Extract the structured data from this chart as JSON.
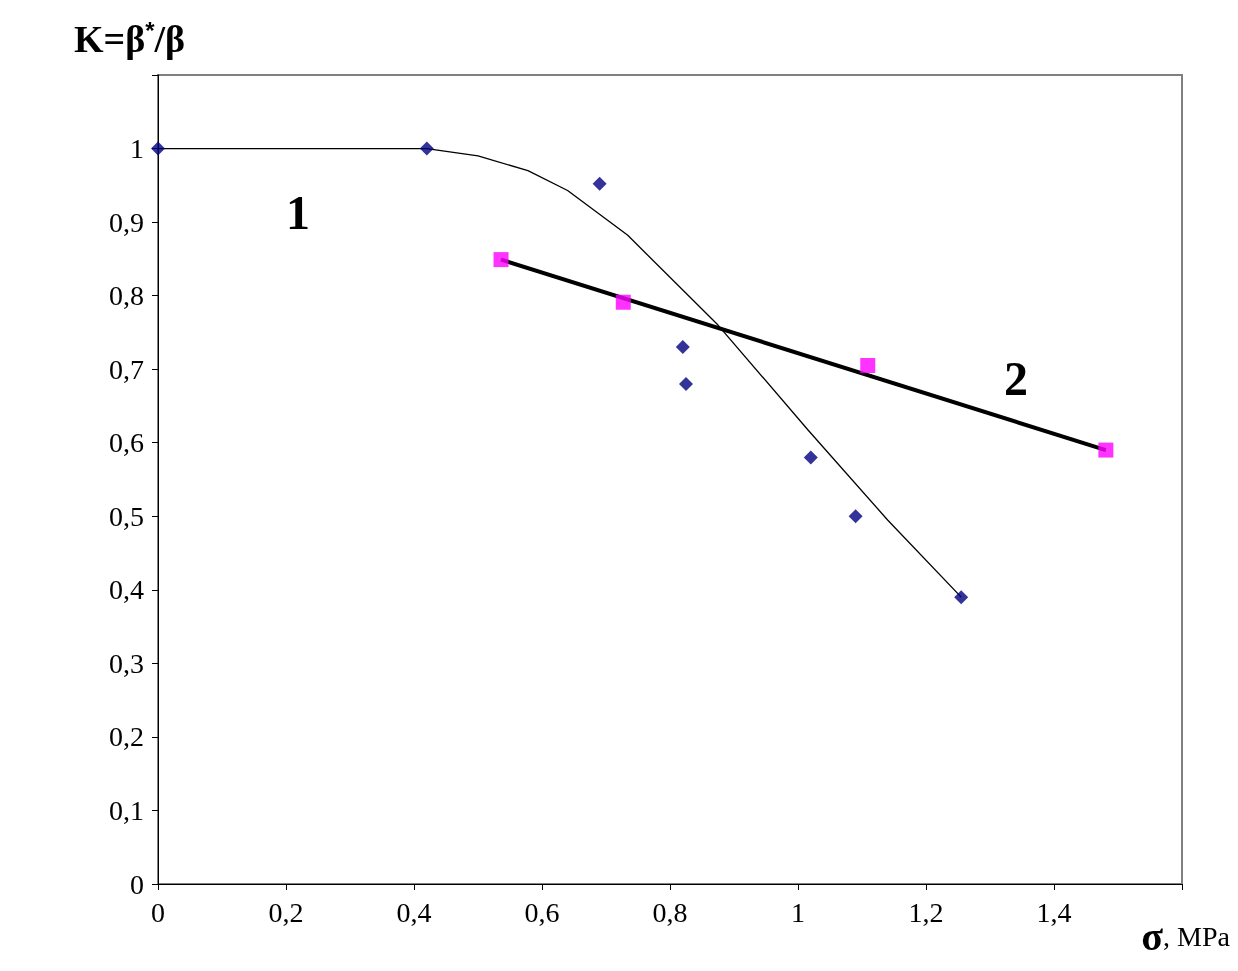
{
  "chart_data": {
    "type": "scatter",
    "xlabel": "σ, MPa",
    "ylabel": "K=β$^{*}$/β",
    "xlim": [
      0,
      1.6
    ],
    "xticks": [
      0,
      {
        "value": 0.2,
        "label": "0,2"
      },
      {
        "value": 0.4,
        "label": "0,4"
      },
      {
        "value": 0.6,
        "label": "0,6"
      },
      {
        "value": 0.8,
        "label": "0,8"
      },
      1,
      {
        "value": 1.2,
        "label": "1,2"
      },
      {
        "value": 1.4,
        "label": "1,4"
      },
      {
        "value": 1.6,
        "label": null
      }
    ],
    "ylim": [
      0,
      1.1
    ],
    "yticks": [
      0,
      {
        "value": 0.1,
        "label": "0,1"
      },
      {
        "value": 0.2,
        "label": "0,2"
      },
      {
        "value": 0.3,
        "label": "0,3"
      },
      {
        "value": 0.4,
        "label": "0,4"
      },
      {
        "value": 0.5,
        "label": "0,5"
      },
      {
        "value": 0.6,
        "label": "0,6"
      },
      {
        "value": 0.7,
        "label": "0,7"
      },
      {
        "value": 0.8,
        "label": "0,8"
      },
      {
        "value": 0.9,
        "label": "0,9"
      },
      1,
      {
        "value": 1.1,
        "label": null
      }
    ],
    "grid": false,
    "series": [
      {
        "type": "line",
        "marker": "none",
        "color": "#000000",
        "x": [
          0,
          0.42,
          0.5,
          0.578,
          0.64,
          0.734,
          0.875,
          1.016,
          1.14,
          1.255
        ],
        "values": [
          1,
          1,
          0.99,
          0.97,
          0.943,
          0.882,
          0.76,
          0.617,
          0.495,
          0.39
        ]
      },
      {
        "type": "line",
        "marker": "none",
        "color": "#000000",
        "x": [
          0.536,
          1.481
        ],
        "values": [
          0.849,
          0.59
        ]
      },
      {
        "marker": "diamond",
        "color": "#000080",
        "x": [
          0,
          0.42,
          0.69,
          0.82,
          0.825,
          1.02,
          1.09,
          1.255
        ],
        "values": [
          1,
          1,
          0.952,
          0.73,
          0.68,
          0.58,
          0.5,
          0.39
        ]
      },
      {
        "marker": "square",
        "color": "#ff00ff",
        "x": [
          0.536,
          0.727,
          1.109,
          1.481
        ],
        "values": [
          0.849,
          0.791,
          0.705,
          0.59
        ]
      }
    ],
    "annotations": [
      "1",
      "2"
    ]
  }
}
